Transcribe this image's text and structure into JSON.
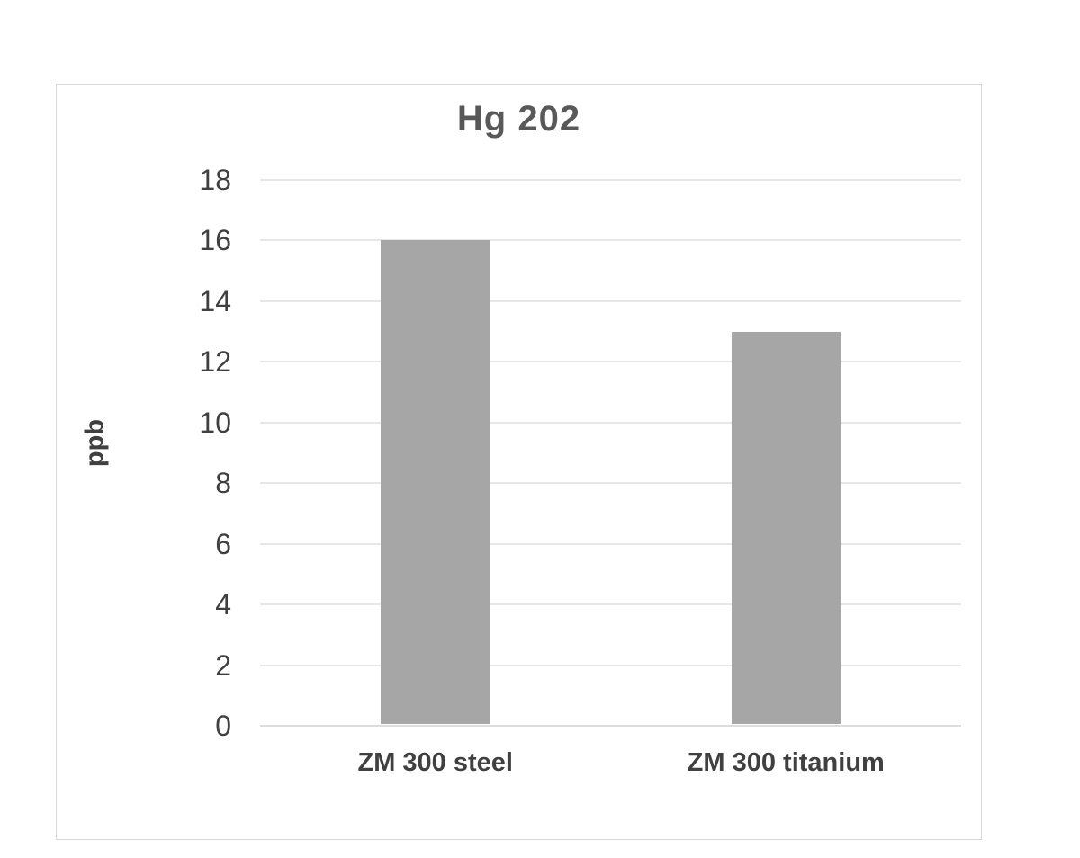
{
  "chart_data": {
    "type": "bar",
    "title": "Hg 202",
    "ylabel": "ppb",
    "xlabel": "",
    "categories": [
      "ZM 300 steel",
      "ZM 300 titanium"
    ],
    "values": [
      16,
      13
    ],
    "ylim": [
      0,
      18
    ],
    "ytick_step": 2,
    "grid": true,
    "legend": "none",
    "colors": {
      "bar": "#a6a6a6",
      "gridline": "#e7e7e7",
      "baseline": "#dcdcdc",
      "axis_text": "#404040",
      "title_text": "#595959",
      "card_border": "#d9d9d9",
      "background": "#ffffff"
    }
  }
}
